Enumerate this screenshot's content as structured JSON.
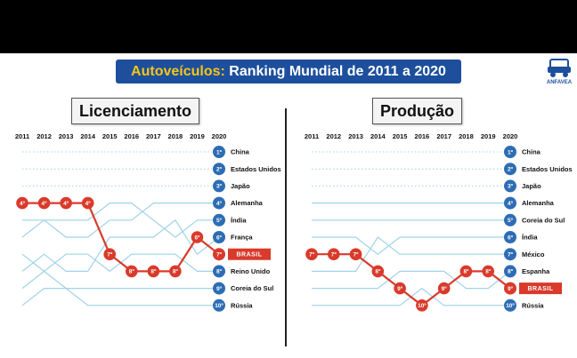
{
  "header": {
    "title_accent": "Autoveículos:",
    "title_rest": " Ranking Mundial de 2011 a 2020",
    "logo_text": "ANFAVEA"
  },
  "colors": {
    "highlight": "#d93a2b",
    "rank_badge": "#2e6db4",
    "background_lines": "#9fd3e8",
    "title_banner": "#1d4f9c",
    "title_accent": "#f5c518"
  },
  "chart_data": [
    {
      "type": "line",
      "title": "Licenciamento",
      "x": [
        "2011",
        "2012",
        "2013",
        "2014",
        "2015",
        "2016",
        "2017",
        "2018",
        "2019",
        "2020"
      ],
      "y_inverted": true,
      "ylim": [
        1,
        10
      ],
      "final_ranking": [
        {
          "rank": 1,
          "label": "1º",
          "country": "China"
        },
        {
          "rank": 2,
          "label": "2º",
          "country": "Estados Unidos"
        },
        {
          "rank": 3,
          "label": "3º",
          "country": "Japão"
        },
        {
          "rank": 4,
          "label": "4º",
          "country": "Alemanha"
        },
        {
          "rank": 5,
          "label": "5º",
          "country": "Índia"
        },
        {
          "rank": 6,
          "label": "6º",
          "country": "França"
        },
        {
          "rank": 7,
          "label": "7º",
          "country": "BRASIL",
          "highlight": true
        },
        {
          "rank": 8,
          "label": "8º",
          "country": "Reino Unido"
        },
        {
          "rank": 9,
          "label": "9º",
          "country": "Coreia do Sul"
        },
        {
          "rank": 10,
          "label": "10º",
          "country": "Rússia"
        }
      ],
      "series": [
        {
          "name": "BRASIL",
          "values": [
            4,
            4,
            4,
            4,
            7,
            8,
            8,
            8,
            6,
            7
          ],
          "labels": [
            "4º",
            "4º",
            "4º",
            "4º",
            "7º",
            "8º",
            "8º",
            "8º",
            "6º",
            "7º"
          ]
        }
      ]
    },
    {
      "type": "line",
      "title": "Produção",
      "x": [
        "2011",
        "2012",
        "2013",
        "2014",
        "2015",
        "2016",
        "2017",
        "2018",
        "2019",
        "2020"
      ],
      "y_inverted": true,
      "ylim": [
        1,
        10
      ],
      "final_ranking": [
        {
          "rank": 1,
          "label": "1º",
          "country": "China"
        },
        {
          "rank": 2,
          "label": "2º",
          "country": "Estados Unidos"
        },
        {
          "rank": 3,
          "label": "3º",
          "country": "Japão"
        },
        {
          "rank": 4,
          "label": "4º",
          "country": "Alemanha"
        },
        {
          "rank": 5,
          "label": "5º",
          "country": "Coreia do Sul"
        },
        {
          "rank": 6,
          "label": "6º",
          "country": "Índia"
        },
        {
          "rank": 7,
          "label": "7º",
          "country": "México"
        },
        {
          "rank": 8,
          "label": "8º",
          "country": "Espanha"
        },
        {
          "rank": 9,
          "label": "9º",
          "country": "BRASIL",
          "highlight": true
        },
        {
          "rank": 10,
          "label": "10º",
          "country": "Rússia"
        }
      ],
      "series": [
        {
          "name": "BRASIL",
          "values": [
            7,
            7,
            7,
            8,
            9,
            10,
            9,
            8,
            8,
            9
          ],
          "labels": [
            "7º",
            "7º",
            "7º",
            "8º",
            "9º",
            "10º",
            "9º",
            "8º",
            "8º",
            "9º"
          ]
        }
      ]
    }
  ]
}
